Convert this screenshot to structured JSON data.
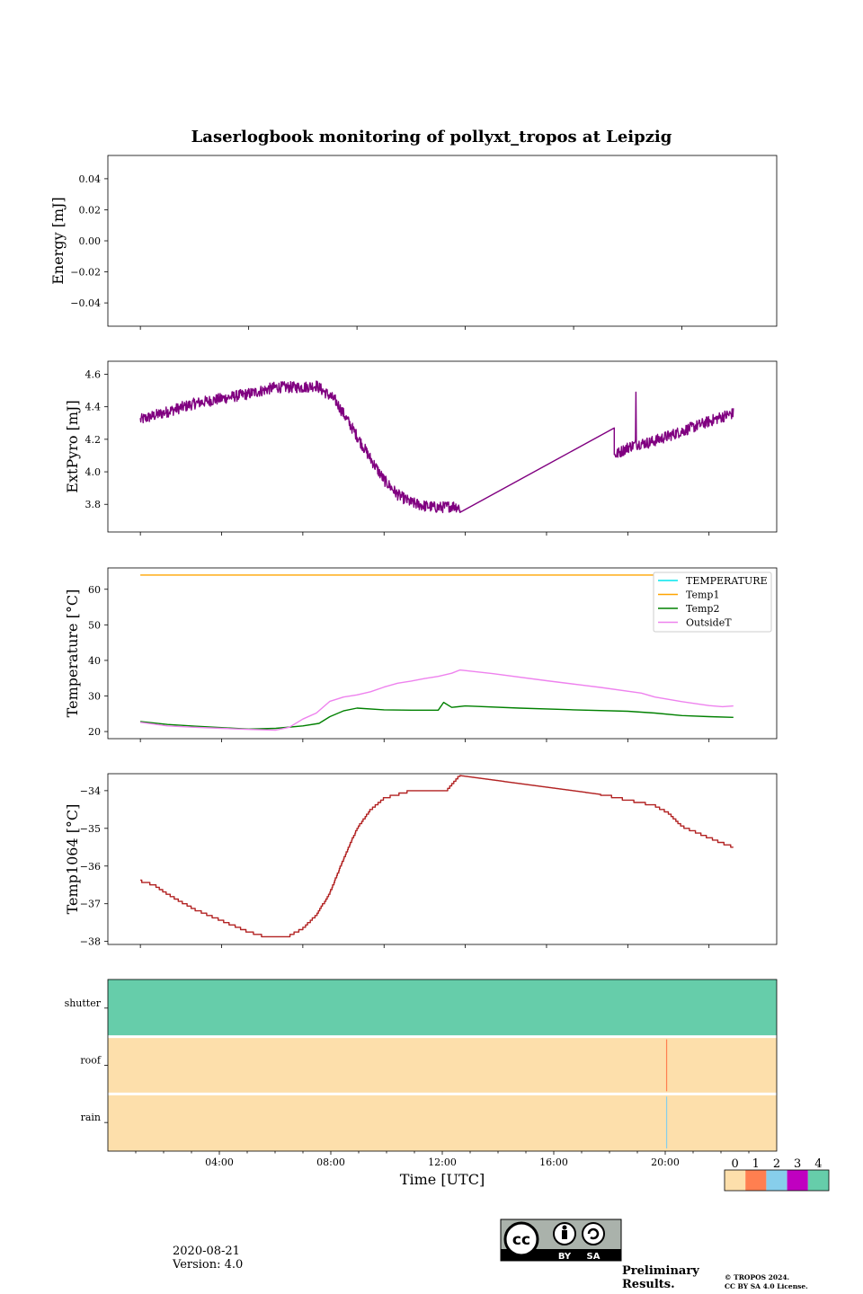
{
  "title": "Laserlogbook monitoring of pollyxt_tropos at Leipzig",
  "footer": {
    "date": "2020-08-21",
    "version": "Version: 4.0",
    "preliminary": "Preliminary Results.",
    "copyright_line1": "© TROPOS 2024.",
    "copyright_line2": "CC BY SA 4.0 License.",
    "cc_labels": [
      "BY",
      "SA"
    ]
  },
  "colors": {
    "extpyro": "#800080",
    "temperature": "#00e5ee",
    "temp1": "#ffa500",
    "temp2": "#008000",
    "outsideT": "#ee82ee",
    "temp1064": "#b22222",
    "flag0": "#fddfab",
    "flag1": "#ff7f50",
    "flag2": "#87ceeb",
    "flag3": "#c000c0",
    "flag4": "#66cdaa",
    "preliminary": "#ff3030"
  },
  "chart_data": [
    {
      "type": "line",
      "name": "energy",
      "ylabel": "Energy [mJ]",
      "ylim": [
        -0.055,
        0.055
      ],
      "yticks": [
        0.04,
        0.02,
        0.0,
        -0.02,
        -0.04
      ],
      "yticklabels": [
        "0.04",
        "0.02",
        "0.00",
        "−0.02",
        "−0.04"
      ],
      "series": []
    },
    {
      "type": "line",
      "name": "extpyro",
      "ylabel": "ExtPyro [mJ]",
      "ylim": [
        3.63,
        4.68
      ],
      "yticks": [
        4.6,
        4.4,
        4.2,
        4.0,
        3.8
      ],
      "yticklabels": [
        "4.6",
        "4.4",
        "4.2",
        "4.0",
        "3.8"
      ],
      "series": [
        {
          "name": "ExtPyro",
          "color": "#800080",
          "noise": 0.035,
          "segments": [
            [
              [
                1.0,
                4.32
              ],
              [
                2,
                4.37
              ],
              [
                3,
                4.42
              ],
              [
                4,
                4.45
              ],
              [
                5,
                4.48
              ],
              [
                6,
                4.52
              ],
              [
                7,
                4.52
              ],
              [
                7.5,
                4.53
              ],
              [
                8.2,
                4.44
              ],
              [
                9,
                4.22
              ],
              [
                9.5,
                4.08
              ],
              [
                10,
                3.95
              ],
              [
                10.5,
                3.86
              ],
              [
                11,
                3.81
              ],
              [
                11.5,
                3.79
              ],
              [
                12,
                3.78
              ],
              [
                12.6,
                3.79
              ],
              [
                12.8,
                3.78
              ]
            ],
            [
              [
                12.8,
                3.75
              ],
              [
                18.5,
                4.27
              ]
            ],
            [
              [
                18.5,
                4.1
              ],
              [
                19.0,
                4.15
              ],
              [
                19.3,
                4.17
              ],
              [
                19.8,
                4.18
              ],
              [
                20.5,
                4.22
              ],
              [
                21,
                4.25
              ],
              [
                21.5,
                4.28
              ],
              [
                22,
                4.31
              ],
              [
                22.5,
                4.34
              ],
              [
                22.9,
                4.36
              ]
            ]
          ]
        }
      ]
    },
    {
      "type": "line",
      "name": "temperature",
      "ylabel": "Temperature [°C]",
      "ylim": [
        18,
        66
      ],
      "yticks": [
        60,
        50,
        40,
        30,
        20
      ],
      "yticklabels": [
        "60",
        "50",
        "40",
        "30",
        "20"
      ],
      "legend": [
        "TEMPERATURE",
        "Temp1",
        "Temp2",
        "OutsideT"
      ],
      "series": [
        {
          "name": "Temp1",
          "color": "#ffa500",
          "points": [
            [
              1.0,
              64
            ],
            [
              22.9,
              64
            ]
          ]
        },
        {
          "name": "Temp2",
          "color": "#008000",
          "points": [
            [
              1.0,
              22.8
            ],
            [
              2,
              22.0
            ],
            [
              3,
              21.5
            ],
            [
              4,
              21.1
            ],
            [
              5,
              20.7
            ],
            [
              6,
              20.9
            ],
            [
              7,
              21.6
            ],
            [
              7.6,
              22.3
            ],
            [
              8,
              24.2
            ],
            [
              8.5,
              25.8
            ],
            [
              9,
              26.6
            ],
            [
              10,
              26.1
            ],
            [
              11,
              26.0
            ],
            [
              12,
              26.0
            ],
            [
              12.2,
              28.2
            ],
            [
              12.5,
              26.8
            ],
            [
              13,
              27.2
            ],
            [
              15,
              26.6
            ],
            [
              17,
              26.1
            ],
            [
              19,
              25.7
            ],
            [
              20,
              25.2
            ],
            [
              21,
              24.5
            ],
            [
              22,
              24.2
            ],
            [
              22.9,
              24.0
            ]
          ]
        },
        {
          "name": "OutsideT",
          "color": "#ee82ee",
          "points": [
            [
              1.0,
              22.6
            ],
            [
              2,
              21.6
            ],
            [
              3,
              21.2
            ],
            [
              4,
              20.9
            ],
            [
              5,
              20.6
            ],
            [
              6,
              20.4
            ],
            [
              6.5,
              21.2
            ],
            [
              7,
              23.5
            ],
            [
              7.5,
              25.2
            ],
            [
              8,
              28.5
            ],
            [
              8.5,
              29.7
            ],
            [
              9,
              30.3
            ],
            [
              9.5,
              31.2
            ],
            [
              10,
              32.5
            ],
            [
              10.5,
              33.6
            ],
            [
              11,
              34.2
            ],
            [
              11.5,
              34.9
            ],
            [
              12,
              35.5
            ],
            [
              12.5,
              36.4
            ],
            [
              12.8,
              37.3
            ],
            [
              14,
              36.3
            ],
            [
              16,
              34.3
            ],
            [
              18,
              32.4
            ],
            [
              19.5,
              30.8
            ],
            [
              20,
              29.7
            ],
            [
              21,
              28.4
            ],
            [
              22,
              27.3
            ],
            [
              22.5,
              27.0
            ],
            [
              22.9,
              27.2
            ]
          ]
        }
      ]
    },
    {
      "type": "line",
      "name": "temp1064",
      "ylabel": "Temp1064 [°C]",
      "ylim": [
        -38.08,
        -33.55
      ],
      "yticks": [
        -34,
        -35,
        -36,
        -37,
        -38
      ],
      "yticklabels": [
        "−34",
        "−35",
        "−36",
        "−37",
        "−38"
      ],
      "series": [
        {
          "name": "Temp1064",
          "color": "#b22222",
          "step": 0.0625,
          "points": [
            [
              1.0,
              -36.4
            ],
            [
              1.5,
              -36.5
            ],
            [
              2,
              -36.75
            ],
            [
              3,
              -37.15
            ],
            [
              4,
              -37.45
            ],
            [
              5,
              -37.75
            ],
            [
              5.5,
              -37.85
            ],
            [
              6,
              -37.9
            ],
            [
              6.5,
              -37.85
            ],
            [
              7,
              -37.65
            ],
            [
              7.5,
              -37.3
            ],
            [
              8,
              -36.7
            ],
            [
              8.5,
              -35.8
            ],
            [
              9,
              -35.0
            ],
            [
              9.5,
              -34.5
            ],
            [
              10,
              -34.2
            ],
            [
              10.5,
              -34.1
            ],
            [
              11,
              -34.0
            ],
            [
              12,
              -34.0
            ],
            [
              12.3,
              -34.0
            ],
            [
              12.6,
              -33.75
            ],
            [
              12.8,
              -33.6
            ],
            [
              18,
              -34.1
            ],
            [
              19,
              -34.25
            ],
            [
              20,
              -34.4
            ],
            [
              20.5,
              -34.6
            ],
            [
              21,
              -34.95
            ],
            [
              21.5,
              -35.1
            ],
            [
              22,
              -35.25
            ],
            [
              22.5,
              -35.4
            ],
            [
              22.9,
              -35.5
            ]
          ]
        }
      ]
    },
    {
      "type": "heatmap",
      "name": "flags",
      "xlabel": "Time [UTC]",
      "rows": [
        "shutter",
        "roof",
        "rain"
      ],
      "row_default_flag": [
        4,
        0,
        0
      ],
      "events": [
        {
          "row": "roof",
          "time": 20.05,
          "flag": 1
        },
        {
          "row": "rain",
          "time": 20.05,
          "flag": 2
        }
      ],
      "xticklabels": [
        "04:00",
        "08:00",
        "12:00",
        "16:00",
        "20:00"
      ],
      "xticks": [
        4,
        8,
        12,
        16,
        20
      ],
      "colorbar_labels": [
        "0",
        "1",
        "2",
        "3",
        "4"
      ]
    }
  ]
}
